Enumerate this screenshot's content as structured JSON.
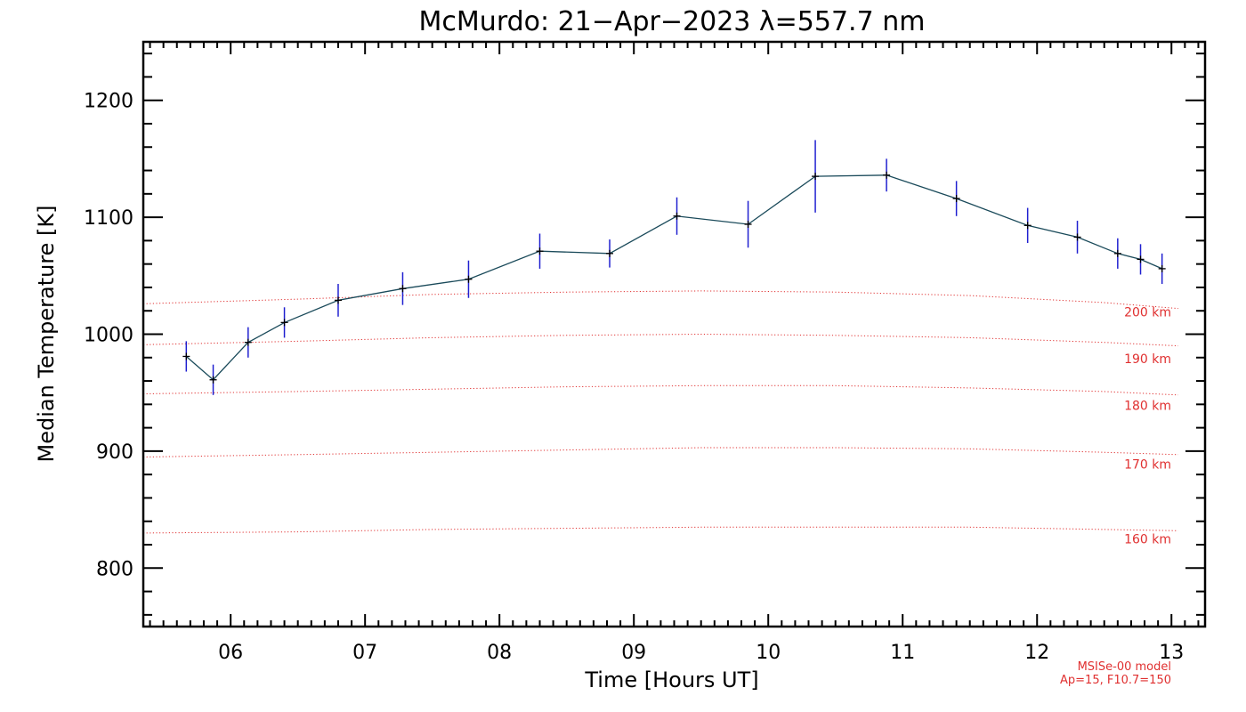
{
  "chart_data": {
    "type": "line",
    "title": "McMurdo: 21−Apr−2023 λ=557.7 nm",
    "xlabel": "Time [Hours UT]",
    "ylabel": "Median Temperature [K]",
    "xlim": [
      5.35,
      13.25
    ],
    "ylim": [
      750,
      1250
    ],
    "x_ticks": [
      6,
      7,
      8,
      9,
      10,
      11,
      12,
      13
    ],
    "x_tick_labels": [
      "06",
      "07",
      "08",
      "09",
      "10",
      "11",
      "12",
      "13"
    ],
    "x_minor_step": 0.1,
    "y_ticks": [
      800,
      900,
      1000,
      1100,
      1200
    ],
    "y_tick_labels": [
      "800",
      "900",
      "1000",
      "1100",
      "1200"
    ],
    "y_minor_step": 20,
    "grid": false,
    "series": [
      {
        "x": [
          5.67,
          5.87,
          6.13,
          6.4,
          6.8,
          7.28,
          7.77,
          8.3,
          8.82,
          9.32,
          9.85,
          10.35,
          10.88,
          11.4,
          11.93,
          12.3,
          12.6,
          12.77,
          12.93
        ],
        "y": [
          981,
          961,
          993,
          1010,
          1029,
          1039,
          1047,
          1071,
          1069,
          1101,
          1094,
          1135,
          1136,
          1116,
          1093,
          1083,
          1069,
          1064,
          1056
        ],
        "err": [
          13,
          13,
          13,
          13,
          14,
          14,
          16,
          15,
          12,
          16,
          20,
          31,
          14,
          15,
          15,
          14,
          13,
          13,
          13
        ],
        "line_color": "#1a4a5a",
        "error_color": "#2020d0",
        "marker_color": "#000000"
      }
    ],
    "reference_curves": [
      {
        "label": "200 km",
        "x": [
          5.35,
          6.5,
          7.5,
          8.5,
          9.5,
          10.5,
          11.5,
          12.5,
          13.05
        ],
        "y": [
          1026,
          1030,
          1034,
          1036,
          1037,
          1036,
          1033,
          1027,
          1022
        ]
      },
      {
        "label": "190 km",
        "x": [
          5.35,
          6.5,
          7.5,
          8.5,
          9.5,
          10.5,
          11.5,
          12.5,
          13.05
        ],
        "y": [
          991,
          994,
          997,
          999,
          1000,
          999,
          997,
          993,
          990
        ]
      },
      {
        "label": "180 km",
        "x": [
          5.35,
          6.5,
          7.5,
          8.5,
          9.5,
          10.5,
          11.5,
          12.5,
          13.05
        ],
        "y": [
          949,
          951,
          953,
          955,
          956,
          956,
          954,
          951,
          948
        ]
      },
      {
        "label": "170 km",
        "x": [
          5.35,
          6.5,
          7.5,
          8.5,
          9.5,
          10.5,
          11.5,
          12.5,
          13.05
        ],
        "y": [
          895,
          897,
          899,
          901,
          903,
          903,
          902,
          899,
          897
        ]
      },
      {
        "label": "160 km",
        "x": [
          5.35,
          6.5,
          7.5,
          8.5,
          9.5,
          10.5,
          11.5,
          12.5,
          13.05
        ],
        "y": [
          830,
          831,
          833,
          834,
          835,
          835,
          835,
          833,
          832
        ]
      }
    ],
    "reference_label_positions": [
      1019,
      979,
      939,
      889,
      825
    ],
    "reference_color": "#e03030",
    "model_note": [
      "MSISe-00 model",
      "Ap=15, F10.7=150"
    ]
  }
}
